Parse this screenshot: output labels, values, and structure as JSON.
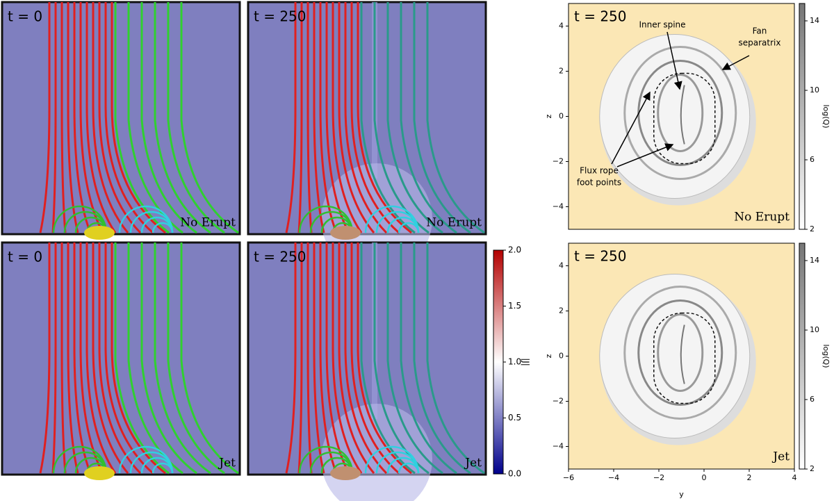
{
  "sim_panels": [
    {
      "time": "t = 0",
      "label": "No Erupt"
    },
    {
      "time": "t = 250",
      "label": "No Erupt"
    },
    {
      "time": "t = 0",
      "label": "Jet"
    },
    {
      "time": "t = 250",
      "label": "Jet"
    }
  ],
  "colorbar": {
    "label": "|J|",
    "lim": [
      0,
      2
    ],
    "ticks": [
      {
        "value": 0,
        "label": "0.0"
      },
      {
        "value": 0.5,
        "label": "0.5"
      },
      {
        "value": 1,
        "label": "1.0"
      },
      {
        "value": 1.5,
        "label": "1.5"
      },
      {
        "value": 2,
        "label": "2.0"
      }
    ],
    "colors": [
      "#00008b",
      "#ffffff",
      "#b30000"
    ]
  },
  "q_maps": [
    {
      "time": "t = 250",
      "label": "No Erupt",
      "annotations": {
        "inner_spine": "Inner spine",
        "fan": [
          "Fan",
          "separatrix"
        ],
        "flux_rope": [
          "Flux rope",
          "foot points"
        ]
      }
    },
    {
      "time": "t = 250",
      "label": "Jet"
    }
  ],
  "q_axes": {
    "xlabel": "y",
    "ylabel": "z",
    "xlim": [
      -6,
      4
    ],
    "ylim": [
      -5,
      5
    ],
    "xticks": [
      {
        "value": -6,
        "label": "−6"
      },
      {
        "value": -4,
        "label": "−4"
      },
      {
        "value": -2,
        "label": "−2"
      },
      0,
      2,
      4
    ],
    "yticks": [
      {
        "value": -4,
        "label": "−4"
      },
      {
        "value": -2,
        "label": "−2"
      },
      0,
      2,
      4
    ]
  },
  "q_colorbar": {
    "label": "log(Q)",
    "lim": [
      2,
      15
    ],
    "ticks": [
      2,
      6,
      10,
      14
    ]
  }
}
